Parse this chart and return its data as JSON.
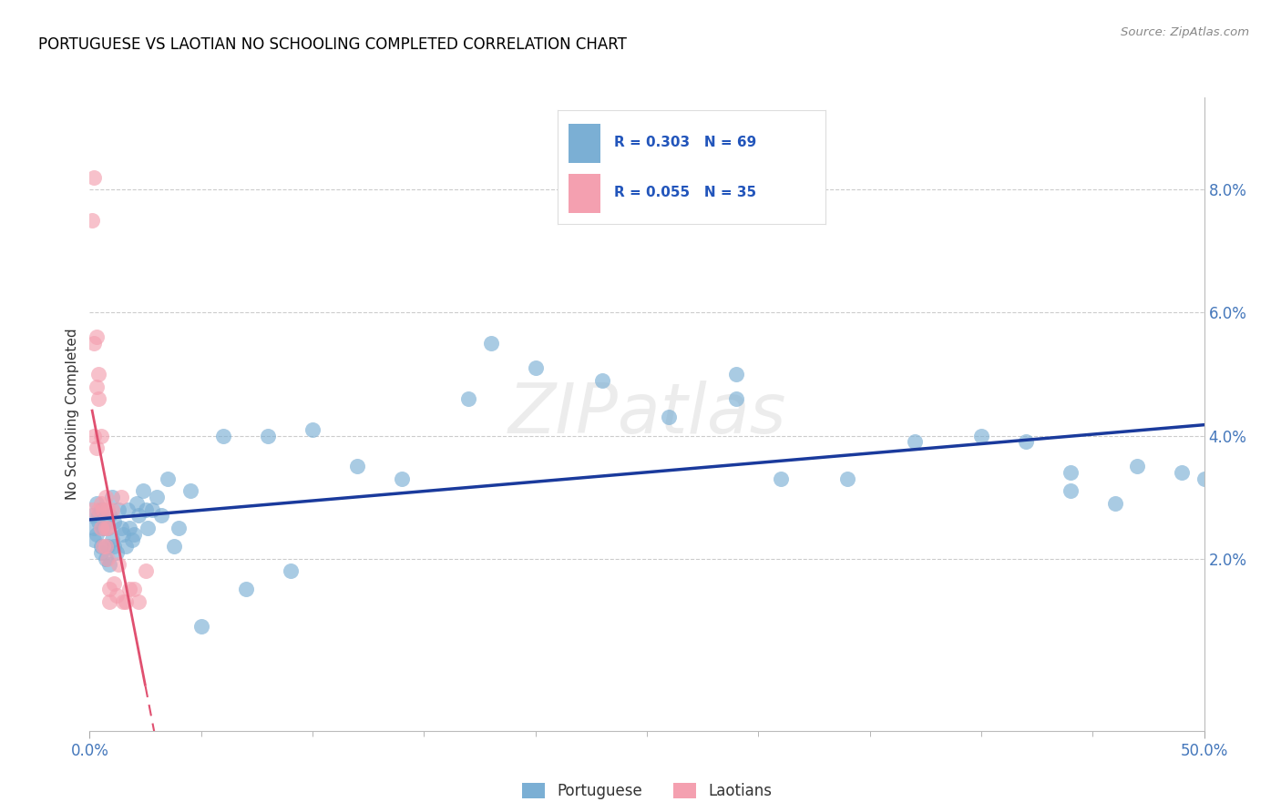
{
  "title": "PORTUGUESE VS LAOTIAN NO SCHOOLING COMPLETED CORRELATION CHART",
  "source": "Source: ZipAtlas.com",
  "ylabel": "No Schooling Completed",
  "xlim": [
    0.0,
    0.5
  ],
  "ylim_low": -0.008,
  "ylim_high": 0.095,
  "y_ticks": [
    0.02,
    0.04,
    0.06,
    0.08
  ],
  "x_ticks_minor": [
    0.05,
    0.1,
    0.15,
    0.2,
    0.25,
    0.3,
    0.35,
    0.4,
    0.45
  ],
  "x_labels": [
    0.0,
    0.5
  ],
  "watermark": "ZIPatlas",
  "color_blue": "#7BAFD4",
  "color_pink": "#F4A0B0",
  "color_blue_line": "#1A3A9C",
  "color_pink_line": "#E05070",
  "portuguese_x": [
    0.001,
    0.002,
    0.002,
    0.003,
    0.003,
    0.004,
    0.004,
    0.005,
    0.005,
    0.005,
    0.006,
    0.006,
    0.007,
    0.007,
    0.008,
    0.008,
    0.009,
    0.009,
    0.01,
    0.01,
    0.011,
    0.011,
    0.012,
    0.013,
    0.014,
    0.015,
    0.016,
    0.017,
    0.018,
    0.019,
    0.02,
    0.021,
    0.022,
    0.024,
    0.025,
    0.026,
    0.028,
    0.03,
    0.032,
    0.035,
    0.038,
    0.04,
    0.045,
    0.05,
    0.06,
    0.07,
    0.08,
    0.09,
    0.1,
    0.12,
    0.14,
    0.17,
    0.2,
    0.23,
    0.26,
    0.29,
    0.31,
    0.34,
    0.37,
    0.4,
    0.42,
    0.44,
    0.46,
    0.47,
    0.49,
    0.5,
    0.29,
    0.18,
    0.44
  ],
  "portuguese_y": [
    0.027,
    0.025,
    0.023,
    0.029,
    0.024,
    0.027,
    0.026,
    0.022,
    0.028,
    0.021,
    0.025,
    0.028,
    0.026,
    0.02,
    0.022,
    0.025,
    0.019,
    0.027,
    0.03,
    0.023,
    0.022,
    0.026,
    0.021,
    0.028,
    0.025,
    0.024,
    0.022,
    0.028,
    0.025,
    0.023,
    0.024,
    0.029,
    0.027,
    0.031,
    0.028,
    0.025,
    0.028,
    0.03,
    0.027,
    0.033,
    0.022,
    0.025,
    0.031,
    0.009,
    0.04,
    0.015,
    0.04,
    0.018,
    0.041,
    0.035,
    0.033,
    0.046,
    0.051,
    0.049,
    0.043,
    0.046,
    0.033,
    0.033,
    0.039,
    0.04,
    0.039,
    0.034,
    0.029,
    0.035,
    0.034,
    0.033,
    0.05,
    0.055,
    0.031
  ],
  "laotian_x": [
    0.001,
    0.001,
    0.002,
    0.002,
    0.002,
    0.003,
    0.003,
    0.003,
    0.004,
    0.004,
    0.004,
    0.005,
    0.005,
    0.005,
    0.006,
    0.006,
    0.007,
    0.007,
    0.007,
    0.008,
    0.008,
    0.008,
    0.009,
    0.009,
    0.01,
    0.011,
    0.012,
    0.013,
    0.014,
    0.015,
    0.016,
    0.018,
    0.02,
    0.022,
    0.025
  ],
  "laotian_y": [
    0.028,
    0.075,
    0.082,
    0.055,
    0.04,
    0.048,
    0.056,
    0.038,
    0.046,
    0.05,
    0.028,
    0.029,
    0.025,
    0.04,
    0.028,
    0.022,
    0.025,
    0.03,
    0.022,
    0.028,
    0.025,
    0.02,
    0.013,
    0.015,
    0.028,
    0.016,
    0.014,
    0.019,
    0.03,
    0.013,
    0.013,
    0.015,
    0.015,
    0.013,
    0.018
  ]
}
